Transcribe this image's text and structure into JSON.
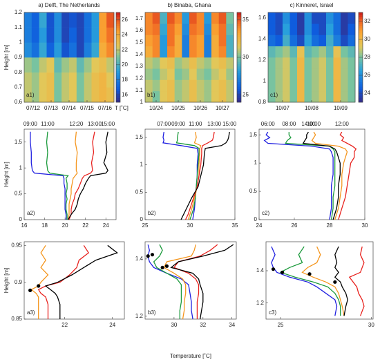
{
  "chart_data": [
    {
      "type": "heatmap",
      "title": "a) Delft, The Netherlands",
      "ylabel": "Height [m]",
      "panel_label": "a1)",
      "clabel": "T [˚C]",
      "categories": [
        "07/12",
        "07/13",
        "07/14",
        "07/15",
        "07/16"
      ],
      "ylim": [
        0.6,
        1.2
      ],
      "yticks": [
        0.6,
        0.7,
        0.8,
        0.9,
        1,
        1.1,
        1.2
      ],
      "clim": [
        15,
        27
      ],
      "cticks": [
        16,
        18,
        20,
        22,
        24,
        26
      ],
      "z": [
        [
          22,
          21.5,
          22.5,
          23,
          21,
          22,
          22.5,
          21,
          22,
          23,
          23.5,
          23
        ],
        [
          22,
          21.5,
          22.5,
          23,
          21,
          22,
          22.5,
          21,
          22,
          23,
          23.5,
          22.5
        ],
        [
          21.5,
          21,
          22,
          22.5,
          20.5,
          21.5,
          22,
          20.5,
          21.5,
          22.5,
          23,
          22
        ],
        [
          18.5,
          17.5,
          19.5,
          17,
          19,
          16.5,
          17.5,
          16,
          18,
          19.5,
          24,
          25
        ],
        [
          18,
          17,
          19,
          16.5,
          18.5,
          16,
          17,
          16,
          17.5,
          19,
          24.5,
          25.5
        ],
        [
          18,
          17,
          19.5,
          16.5,
          18.5,
          16,
          16.5,
          16,
          17.5,
          19,
          24.5,
          26
        ]
      ]
    },
    {
      "type": "heatmap",
      "title": "b) Binaba, Ghana",
      "panel_label": "b1)",
      "categories": [
        "10/24",
        "10/25",
        "10/26",
        "10/27"
      ],
      "ylim": [
        1.0,
        1.75
      ],
      "yticks": [
        1,
        1.1,
        1.2,
        1.3,
        1.4,
        1.5,
        1.6,
        1.7
      ],
      "clim": [
        24,
        36
      ],
      "cticks": [
        25,
        30,
        35
      ],
      "z": [
        [
          31,
          30,
          31.5,
          32,
          30.5,
          31,
          32,
          31,
          30.5,
          31.5,
          32,
          31
        ],
        [
          31,
          30.5,
          31.5,
          32,
          30.5,
          31,
          32,
          31,
          30.5,
          31.5,
          32,
          31
        ],
        [
          30.5,
          30,
          31,
          31.5,
          30,
          30.5,
          31.5,
          30.5,
          30,
          31,
          31.5,
          30.5
        ],
        [
          31,
          30.5,
          31.5,
          32,
          30.5,
          31,
          32,
          31,
          30.5,
          31.5,
          32,
          31
        ],
        [
          33,
          34,
          28,
          34,
          33,
          27,
          34,
          33.5,
          27,
          33,
          34,
          29
        ],
        [
          33.5,
          34,
          28,
          34.5,
          33,
          27,
          34,
          33.5,
          27,
          33,
          34.5,
          29
        ],
        [
          34,
          34.5,
          28.5,
          34.5,
          33.5,
          27.5,
          34.5,
          34,
          27.5,
          33.5,
          34.5,
          29.5
        ],
        [
          34,
          35,
          29,
          35,
          34,
          28,
          35,
          34,
          28,
          34,
          35,
          30
        ]
      ]
    },
    {
      "type": "heatmap",
      "title": "c) Kinneret, Israel",
      "panel_label": "c1)",
      "categories": [
        "10/07",
        "10/08",
        "10/09"
      ],
      "ylim": [
        0.8,
        1.65
      ],
      "yticks": [
        0.8,
        1,
        1.2,
        1.4,
        1.6
      ],
      "clim": [
        23,
        33
      ],
      "cticks": [
        24,
        26,
        28,
        30,
        32
      ],
      "z": [
        [
          28,
          28.5,
          29,
          28,
          30,
          28,
          28.5,
          29,
          28,
          30,
          28.5,
          28
        ],
        [
          28,
          28.5,
          29,
          28,
          30,
          28,
          28.5,
          29,
          28,
          30,
          28.5,
          28
        ],
        [
          28,
          28.5,
          29,
          28,
          30,
          28,
          28.5,
          29,
          28,
          30,
          28.5,
          28
        ],
        [
          28,
          28.5,
          29,
          28,
          30,
          28,
          28.5,
          29,
          28,
          30,
          28.5,
          28
        ],
        [
          27.5,
          28,
          28.5,
          27.5,
          29.5,
          27.5,
          28,
          28.5,
          27.5,
          29.5,
          28,
          27.5
        ],
        [
          25,
          24.5,
          27,
          25,
          24,
          26.5,
          25,
          24.5,
          27,
          25.5,
          24,
          25
        ],
        [
          24.5,
          24,
          26.5,
          24.5,
          23.5,
          26,
          24.5,
          24,
          26.5,
          25,
          23.5,
          24.5
        ],
        [
          24.5,
          24,
          26,
          24.5,
          23.5,
          26,
          24,
          24,
          26,
          25,
          23.5,
          24
        ]
      ]
    },
    {
      "type": "profile",
      "ylabel": "Height [m]",
      "panel_label": "a2)",
      "xlim": [
        16,
        25
      ],
      "xticks": [
        16,
        18,
        20,
        22,
        24
      ],
      "ylim": [
        0,
        1.75
      ],
      "yticks": [
        0,
        0.5,
        1,
        1.5
      ],
      "y": [
        0,
        0.1,
        0.2,
        0.3,
        0.4,
        0.5,
        0.6,
        0.7,
        0.8,
        0.85,
        0.9,
        0.95,
        1.1,
        1.3,
        1.5,
        1.7
      ],
      "series": [
        {
          "name": "09:00",
          "color": "#1f1fe0",
          "values": [
            20.1,
            20.1,
            20.0,
            20.0,
            20.0,
            20.0,
            20.0,
            19.9,
            19.9,
            19.8,
            17.0,
            16.8,
            16.7,
            16.7,
            16.6,
            16.6
          ]
        },
        {
          "name": "11:00",
          "color": "#1c9a3c",
          "values": [
            20.2,
            20.2,
            20.1,
            20.1,
            20.2,
            20.1,
            20.2,
            20.2,
            20.1,
            20.3,
            18.5,
            18.3,
            18.2,
            18.3,
            18.2,
            18.3
          ]
        },
        {
          "name": "12:20",
          "color": "#f5961e",
          "values": [
            20.3,
            20.4,
            20.4,
            20.4,
            20.5,
            20.6,
            20.6,
            20.7,
            20.8,
            21.0,
            21.2,
            21.1,
            21.1,
            21.2,
            21.0,
            21.1
          ]
        },
        {
          "name": "13:00",
          "color": "#e8231f",
          "values": [
            20.4,
            20.6,
            20.6,
            20.7,
            20.9,
            21.0,
            21.3,
            21.5,
            21.7,
            21.9,
            22.5,
            22.7,
            22.6,
            22.8,
            22.7,
            22.9
          ]
        },
        {
          "name": "15:00",
          "color": "#000000",
          "values": [
            20.3,
            20.6,
            21.0,
            21.2,
            21.3,
            21.5,
            21.8,
            22.0,
            22.3,
            22.5,
            24.0,
            24.2,
            23.8,
            24.1,
            24.0,
            24.2
          ]
        }
      ]
    },
    {
      "type": "profile",
      "panel_label": "b2)",
      "xlim": [
        25,
        35
      ],
      "xticks": [
        25,
        30,
        35
      ],
      "ylim": [
        0,
        1.65
      ],
      "yticks": [
        0,
        0.5,
        1,
        1.5
      ],
      "y": [
        0,
        0.1,
        0.2,
        0.4,
        0.6,
        0.8,
        1.0,
        1.2,
        1.3,
        1.35,
        1.4,
        1.45,
        1.5,
        1.6
      ],
      "series": [
        {
          "name": "07:00",
          "color": "#1f1fe0",
          "values": [
            30.3,
            30.4,
            30.5,
            30.6,
            30.7,
            30.8,
            30.8,
            30.9,
            30.8,
            29.0,
            27.0,
            27.1,
            27.0,
            27.1
          ]
        },
        {
          "name": "09:00",
          "color": "#1c9a3c",
          "values": [
            30.0,
            30.2,
            30.4,
            30.6,
            30.7,
            30.8,
            30.9,
            31.0,
            31.0,
            30.5,
            28.5,
            28.6,
            28.6,
            28.7
          ]
        },
        {
          "name": "11:00",
          "color": "#f5961e",
          "values": [
            29.8,
            30.0,
            30.2,
            30.5,
            30.8,
            31.0,
            31.0,
            31.1,
            31.1,
            31.2,
            30.5,
            30.6,
            30.7,
            30.6
          ]
        },
        {
          "name": "13:00",
          "color": "#e8231f",
          "values": [
            29.5,
            29.8,
            30.0,
            30.4,
            30.8,
            31.0,
            31.2,
            31.3,
            31.3,
            31.4,
            32.0,
            32.5,
            32.6,
            32.7
          ]
        },
        {
          "name": "15:00",
          "color": "#000000",
          "values": [
            29.0,
            29.3,
            29.6,
            30.2,
            30.9,
            31.2,
            31.5,
            31.6,
            31.7,
            33.5,
            34.0,
            34.2,
            34.3,
            34.4
          ]
        }
      ]
    },
    {
      "type": "profile",
      "panel_label": "c2)",
      "xlim": [
        24,
        30
      ],
      "xticks": [
        24,
        26,
        28,
        30
      ],
      "ylim": [
        0,
        1.6
      ],
      "yticks": [
        0,
        0.5,
        1,
        1.5
      ],
      "y": [
        0,
        0.2,
        0.4,
        0.6,
        0.8,
        1.0,
        1.1,
        1.2,
        1.25,
        1.3,
        1.35,
        1.4,
        1.45,
        1.5,
        1.55
      ],
      "series": [
        {
          "name": "06:00",
          "color": "#1f1fe0",
          "values": [
            28.0,
            28.1,
            28.1,
            28.1,
            28.2,
            28.2,
            28.2,
            28.1,
            28.0,
            27.0,
            24.5,
            24.3,
            24.6,
            24.4,
            24.5
          ]
        },
        {
          "name": "08:00",
          "color": "#1c9a3c",
          "values": [
            28.1,
            28.2,
            28.2,
            28.3,
            28.3,
            28.3,
            28.3,
            28.3,
            28.2,
            28.0,
            25.5,
            25.6,
            25.8,
            25.7,
            25.7
          ]
        },
        {
          "name": "14:00",
          "color": "#000000",
          "values": [
            28.2,
            28.4,
            28.5,
            28.5,
            28.6,
            28.6,
            28.5,
            28.4,
            28.3,
            28.0,
            26.5,
            26.6,
            26.7,
            26.7,
            26.8
          ]
        },
        {
          "name": "10:00",
          "color": "#f5961e",
          "values": [
            28.3,
            28.5,
            28.6,
            28.7,
            28.7,
            28.8,
            28.9,
            29.0,
            28.9,
            28.5,
            27.2,
            27.0,
            27.1,
            27.2,
            27.1
          ]
        },
        {
          "name": "12:00",
          "color": "#e8231f",
          "values": [
            28.5,
            28.7,
            28.9,
            29.0,
            29.1,
            29.2,
            29.4,
            29.4,
            29.5,
            29.3,
            29.0,
            28.7,
            28.8,
            28.6,
            28.7
          ]
        }
      ]
    },
    {
      "type": "profile",
      "ylabel": "Height [m]",
      "panel_label": "a3)",
      "xlim": [
        20.3,
        24.5
      ],
      "xticks": [
        22,
        24
      ],
      "ylim": [
        0.85,
        0.955
      ],
      "yticks": [
        0.85,
        0.9,
        0.95
      ],
      "y": [
        0.85,
        0.86,
        0.87,
        0.88,
        0.885,
        0.89,
        0.895,
        0.9,
        0.91,
        0.92,
        0.93,
        0.94,
        0.95
      ],
      "series": [
        {
          "color": "#f5961e",
          "values": [
            20.9,
            20.9,
            20.9,
            20.9,
            20.8,
            20.6,
            20.9,
            21.0,
            21.3,
            21.0,
            21.2,
            21.0,
            21.2
          ]
        },
        {
          "color": "#e8231f",
          "values": [
            21.3,
            21.3,
            21.3,
            21.2,
            21.0,
            20.9,
            21.2,
            21.8,
            22.2,
            22.5,
            22.6,
            23.0,
            22.8
          ]
        },
        {
          "color": "#000000",
          "values": [
            21.8,
            21.8,
            21.8,
            21.7,
            21.6,
            21.4,
            21.2,
            21.7,
            22.3,
            22.8,
            23.3,
            24.2,
            23.8
          ]
        }
      ],
      "markers": {
        "x": [
          20.55,
          20.9
        ],
        "y": [
          0.889,
          0.895
        ]
      }
    },
    {
      "type": "profile",
      "panel_label": "b3)",
      "xlabel": "Temperature [˚C]",
      "xlim": [
        28,
        34.3
      ],
      "xticks": [
        30,
        32,
        34
      ],
      "ylim": [
        1.19,
        1.46
      ],
      "yticks": [
        1.2,
        1.4
      ],
      "y": [
        1.19,
        1.22,
        1.25,
        1.28,
        1.31,
        1.33,
        1.35,
        1.37,
        1.39,
        1.41,
        1.43,
        1.45
      ],
      "series": [
        {
          "color": "#1f1fe0",
          "values": [
            31.3,
            31.2,
            31.2,
            31.1,
            31.0,
            30.5,
            29.5,
            28.6,
            28.3,
            28.2,
            28.3,
            28.2
          ]
        },
        {
          "color": "#1c9a3c",
          "values": [
            30.4,
            30.4,
            30.5,
            30.5,
            30.5,
            30.2,
            29.5,
            28.8,
            28.6,
            29.0,
            29.2,
            29.0
          ]
        },
        {
          "color": "#f5961e",
          "values": [
            30.6,
            30.7,
            30.7,
            30.8,
            30.8,
            30.6,
            30.0,
            29.3,
            29.5,
            31.2,
            31.4,
            31.5
          ]
        },
        {
          "color": "#e8231f",
          "values": [
            31.6,
            31.6,
            31.6,
            31.7,
            31.7,
            31.5,
            31.0,
            30.0,
            30.3,
            31.8,
            32.5,
            33.0
          ]
        },
        {
          "color": "#000000",
          "values": [
            31.8,
            31.9,
            32.0,
            32.0,
            31.8,
            31.7,
            31.3,
            29.8,
            30.3,
            32.0,
            33.5,
            34.1
          ]
        }
      ],
      "markers": {
        "x": [
          28.2,
          28.5,
          29.2,
          29.5
        ],
        "y": [
          1.41,
          1.415,
          1.37,
          1.375
        ]
      }
    },
    {
      "type": "profile",
      "panel_label": "c3)",
      "xlim": [
        24.2,
        30.1
      ],
      "xticks": [
        25,
        30
      ],
      "ylim": [
        1.1,
        1.58
      ],
      "yticks": [
        1.2,
        1.4
      ],
      "y": [
        1.12,
        1.18,
        1.22,
        1.26,
        1.3,
        1.33,
        1.36,
        1.39,
        1.42,
        1.45,
        1.5,
        1.55
      ],
      "series": [
        {
          "color": "#1f1fe0",
          "values": [
            28.0,
            28.1,
            28.0,
            27.5,
            27.0,
            26.5,
            25.5,
            24.8,
            24.6,
            24.5,
            24.7,
            24.5
          ]
        },
        {
          "color": "#1c9a3c",
          "values": [
            28.3,
            28.3,
            28.2,
            28.0,
            27.6,
            26.8,
            25.8,
            25.0,
            25.5,
            26.2,
            26.0,
            26.3
          ]
        },
        {
          "color": "#f5961e",
          "values": [
            28.5,
            28.4,
            28.3,
            28.2,
            28.0,
            27.5,
            26.8,
            26.2,
            26.5,
            27.0,
            27.2,
            27.0
          ]
        },
        {
          "color": "#000000",
          "values": [
            28.5,
            28.6,
            28.7,
            28.6,
            28.4,
            28.3,
            28.0,
            28.2,
            28.0,
            28.1,
            28.0,
            28.2
          ]
        },
        {
          "color": "#e8231f",
          "values": [
            29.4,
            29.6,
            29.5,
            29.3,
            29.2,
            29.0,
            28.8,
            29.4,
            29.5,
            29.6,
            29.4,
            29.5
          ]
        }
      ],
      "markers": {
        "x": [
          24.6,
          25.1,
          26.6,
          28.0
        ],
        "y": [
          1.41,
          1.39,
          1.38,
          1.33
        ]
      }
    }
  ]
}
